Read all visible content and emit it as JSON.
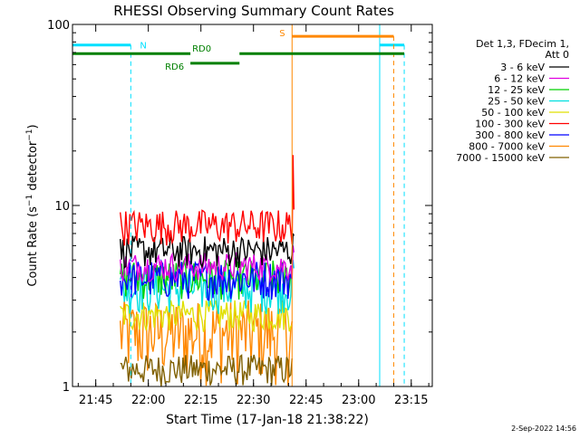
{
  "chart_data": {
    "type": "line",
    "title": "RHESSI Observing Summary Count Rates",
    "xlabel": "Start Time (17-Jan-18 21:38:22)",
    "ylabel": "Count Rate (s⁻¹ detector⁻¹)",
    "ylabel_main": "Count Rate (s",
    "ylabel_sup1": "−1",
    "ylabel_mid": " detector",
    "ylabel_sup2": "−1",
    "ylabel_end": ")",
    "y_scale": "log",
    "ylim": [
      1,
      100
    ],
    "xlim": [
      "21:38:22",
      "23:21:00"
    ],
    "x_ticks": [
      "21:45",
      "22:00",
      "22:15",
      "22:30",
      "22:45",
      "23:00",
      "23:15"
    ],
    "y_ticks": [
      "1",
      "10",
      "100"
    ],
    "legend_header": [
      "Det 1,3, FDecim 1,",
      "Att 0"
    ],
    "legend_placement": "right",
    "series": [
      {
        "name": "3 - 6 keV",
        "color": "#000000",
        "start": "21:52",
        "end": "22:41",
        "low": 4.5,
        "high": 6.8,
        "peak": 7
      },
      {
        "name": "6 - 12 keV",
        "color": "#e000e0",
        "start": "21:52",
        "end": "22:41",
        "low": 3.8,
        "high": 5.5,
        "peak": 6
      },
      {
        "name": "12 - 25 keV",
        "color": "#00d000",
        "start": "21:52",
        "end": "22:41",
        "low": 3,
        "high": 5,
        "peak": 5
      },
      {
        "name": "25 - 50 keV",
        "color": "#00e0e0",
        "start": "21:52",
        "end": "22:41",
        "low": 2.5,
        "high": 4.5,
        "peak": 5
      },
      {
        "name": "50 - 100 keV",
        "color": "#e0e000",
        "start": "21:52",
        "end": "22:41",
        "low": 2,
        "high": 3,
        "peak": 3
      },
      {
        "name": "100 - 300 keV",
        "color": "#ff0000",
        "start": "21:52",
        "end": "22:41",
        "low": 6,
        "high": 9.5,
        "peak": 19
      },
      {
        "name": "300 - 800 keV",
        "color": "#0000ff",
        "start": "21:52",
        "end": "22:41",
        "low": 3,
        "high": 5,
        "peak": 5
      },
      {
        "name": "800 - 7000 keV",
        "color": "#ff8800",
        "start": "21:52",
        "end": "22:41",
        "low": 1,
        "high": 3,
        "peak": 3
      },
      {
        "name": "7000 - 15000 keV",
        "color": "#806000",
        "start": "21:52",
        "end": "22:41",
        "low": 1,
        "high": 1.5,
        "peak": 1.5
      }
    ],
    "flags": [
      {
        "label": "N",
        "color": "#00e0ff",
        "level": 77,
        "segments": [
          [
            "21:38:22",
            "21:55"
          ],
          [
            "23:06",
            "23:13"
          ]
        ],
        "dashed_marker": "21:55",
        "end_marker": "23:13"
      },
      {
        "label": "S",
        "color": "#ff8800",
        "level": 86,
        "segments": [
          [
            "22:41",
            "23:10"
          ]
        ],
        "dashed_marker": "23:10"
      },
      {
        "label": "RD0",
        "color": "#008000",
        "level": 69,
        "segments": [
          [
            "21:38:22",
            "22:12"
          ],
          [
            "22:26",
            "23:13"
          ]
        ]
      },
      {
        "label": "RD6",
        "color": "#008000",
        "level": 61,
        "segments": [
          [
            "22:12",
            "22:26"
          ]
        ]
      }
    ],
    "markers": [
      {
        "name": "attenuator-in",
        "color": "#00e0ff",
        "time": "21:38:22"
      },
      {
        "name": "saa",
        "color": "#ff8800",
        "time": "22:41"
      },
      {
        "name": "night",
        "color": "#00e0ff",
        "time": "23:06"
      }
    ]
  },
  "footer": {
    "date_stamp": "2-Sep-2022 14:56"
  }
}
